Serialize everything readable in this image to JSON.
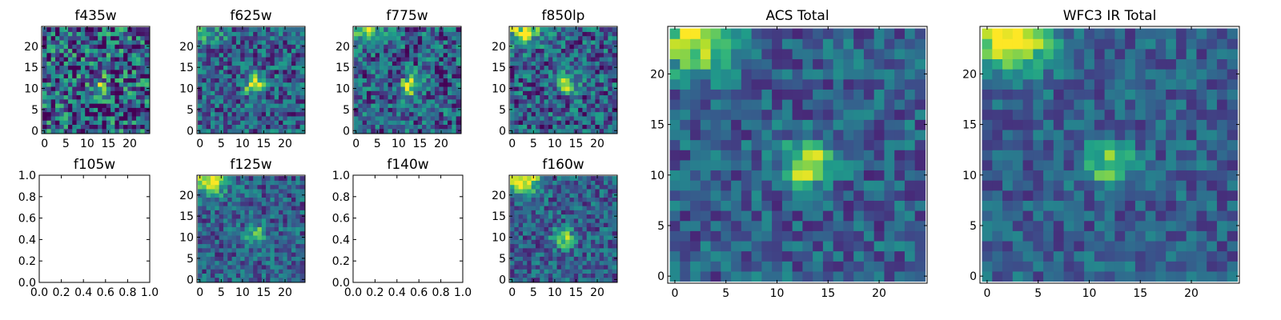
{
  "chart_data": [
    {
      "type": "heatmap",
      "title": "f435w",
      "xlim": [
        0,
        24
      ],
      "ylim": [
        0,
        24
      ],
      "xticks": [
        0,
        5,
        10,
        15,
        20
      ],
      "yticks": [
        0,
        5,
        10,
        15,
        20
      ],
      "has_image": true,
      "noise": 0.85,
      "blob_center": [
        13,
        11
      ],
      "blob_peak": 0.35,
      "corner_peak": 0.0
    },
    {
      "type": "heatmap",
      "title": "f625w",
      "xlim": [
        0,
        24
      ],
      "ylim": [
        0,
        24
      ],
      "xticks": [
        0,
        5,
        10,
        15,
        20
      ],
      "yticks": [
        0,
        5,
        10,
        15,
        20
      ],
      "has_image": true,
      "noise": 0.55,
      "blob_center": [
        13,
        11
      ],
      "blob_peak": 0.75,
      "corner_peak": 0.3
    },
    {
      "type": "heatmap",
      "title": "f775w",
      "xlim": [
        0,
        24
      ],
      "ylim": [
        0,
        24
      ],
      "xticks": [
        0,
        5,
        10,
        15,
        20
      ],
      "yticks": [
        0,
        5,
        10,
        15,
        20
      ],
      "has_image": true,
      "noise": 0.6,
      "blob_center": [
        13,
        11
      ],
      "blob_peak": 0.7,
      "corner_peak": 0.5
    },
    {
      "type": "heatmap",
      "title": "f850lp",
      "xlim": [
        0,
        24
      ],
      "ylim": [
        0,
        24
      ],
      "xticks": [
        0,
        5,
        10,
        15,
        20
      ],
      "yticks": [
        0,
        5,
        10,
        15,
        20
      ],
      "has_image": true,
      "noise": 0.6,
      "blob_center": [
        13,
        11
      ],
      "blob_peak": 0.6,
      "corner_peak": 0.6
    },
    {
      "type": "heatmap",
      "title": "f105w",
      "xlim": [
        0.0,
        1.0
      ],
      "ylim": [
        0.0,
        1.0
      ],
      "xticks": [
        "0.0",
        "0.2",
        "0.4",
        "0.6",
        "0.8",
        "1.0"
      ],
      "yticks": [
        "0.0",
        "0.2",
        "0.4",
        "0.6",
        "0.8",
        "1.0"
      ],
      "has_image": false
    },
    {
      "type": "heatmap",
      "title": "f125w",
      "xlim": [
        0,
        24
      ],
      "ylim": [
        0,
        24
      ],
      "xticks": [
        0,
        5,
        10,
        15,
        20
      ],
      "yticks": [
        0,
        5,
        10,
        15,
        20
      ],
      "has_image": true,
      "noise": 0.45,
      "blob_center": [
        13,
        11
      ],
      "blob_peak": 0.45,
      "corner_peak": 0.75
    },
    {
      "type": "heatmap",
      "title": "f140w",
      "xlim": [
        0.0,
        1.0
      ],
      "ylim": [
        0.0,
        1.0
      ],
      "xticks": [
        "0.0",
        "0.2",
        "0.4",
        "0.6",
        "0.8",
        "1.0"
      ],
      "yticks": [
        "0.0",
        "0.2",
        "0.4",
        "0.6",
        "0.8",
        "1.0"
      ],
      "has_image": false
    },
    {
      "type": "heatmap",
      "title": "f160w",
      "xlim": [
        0,
        24
      ],
      "ylim": [
        0,
        24
      ],
      "xticks": [
        0,
        5,
        10,
        15,
        20
      ],
      "yticks": [
        0,
        5,
        10,
        15,
        20
      ],
      "has_image": true,
      "noise": 0.45,
      "blob_center": [
        12,
        10
      ],
      "blob_peak": 0.55,
      "corner_peak": 0.8
    },
    {
      "type": "heatmap",
      "title": "ACS Total",
      "xlim": [
        0,
        24
      ],
      "ylim": [
        0,
        24
      ],
      "xticks": [
        0,
        5,
        10,
        15,
        20
      ],
      "yticks": [
        0,
        5,
        10,
        15,
        20
      ],
      "has_image": true,
      "noise": 0.4,
      "blob_center": [
        13,
        11
      ],
      "blob_peak": 0.7,
      "corner_peak": 0.7
    },
    {
      "type": "heatmap",
      "title": "WFC3 IR Total",
      "xlim": [
        0,
        24
      ],
      "ylim": [
        0,
        24
      ],
      "xticks": [
        0,
        5,
        10,
        15,
        20
      ],
      "yticks": [
        0,
        5,
        10,
        15,
        20
      ],
      "has_image": true,
      "noise": 0.35,
      "blob_center": [
        12,
        11
      ],
      "blob_peak": 0.5,
      "corner_peak": 0.85
    }
  ]
}
